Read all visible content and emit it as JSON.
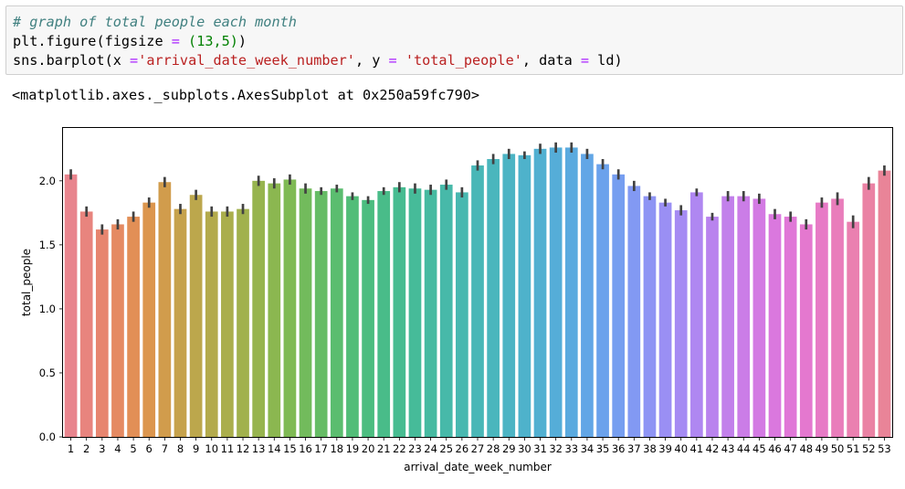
{
  "cell": {
    "comment": "# graph of total people each month",
    "line2": {
      "fn": "plt.figure",
      "open": "(",
      "arg": "figsize",
      "eq": " = ",
      "tuple": "(13,5)",
      "close": ")"
    },
    "line3": {
      "fn": "sns.barplot",
      "open": "(",
      "x_kw": "x ",
      "eq1": "=",
      "x_val": "'arrival_date_week_number'",
      "sep1": ", ",
      "y_kw": "y ",
      "eq2": "=",
      "y_val": " 'total_people'",
      "sep2": ", ",
      "data_kw": "data ",
      "eq3": "=",
      "data_val": " ld",
      "close": ")"
    }
  },
  "output": "<matplotlib.axes._subplots.AxesSubplot at 0x250a59fc790>",
  "chart_data": {
    "type": "bar",
    "xlabel": "arrival_date_week_number",
    "ylabel": "total_people",
    "ylim": [
      0,
      2.42
    ],
    "yticks": [
      "0.0",
      "0.5",
      "1.0",
      "1.5",
      "2.0"
    ],
    "categories": [
      "1",
      "2",
      "3",
      "4",
      "5",
      "6",
      "7",
      "8",
      "9",
      "10",
      "11",
      "12",
      "13",
      "14",
      "15",
      "16",
      "17",
      "18",
      "19",
      "20",
      "21",
      "22",
      "23",
      "24",
      "25",
      "26",
      "27",
      "28",
      "29",
      "30",
      "31",
      "32",
      "33",
      "34",
      "35",
      "36",
      "37",
      "38",
      "39",
      "40",
      "41",
      "42",
      "43",
      "44",
      "45",
      "46",
      "47",
      "48",
      "49",
      "50",
      "51",
      "52",
      "53"
    ],
    "values": [
      2.05,
      1.76,
      1.62,
      1.66,
      1.72,
      1.83,
      1.99,
      1.78,
      1.89,
      1.76,
      1.76,
      1.78,
      2.0,
      1.98,
      2.01,
      1.94,
      1.92,
      1.94,
      1.88,
      1.85,
      1.92,
      1.95,
      1.94,
      1.93,
      1.97,
      1.91,
      2.12,
      2.17,
      2.21,
      2.2,
      2.25,
      2.26,
      2.26,
      2.21,
      2.13,
      2.05,
      1.96,
      1.88,
      1.83,
      1.77,
      1.91,
      1.72,
      1.88,
      1.88,
      1.86,
      1.74,
      1.72,
      1.66,
      1.83,
      1.86,
      1.68,
      1.98,
      2.08
    ],
    "errors": [
      0.04,
      0.04,
      0.04,
      0.04,
      0.04,
      0.04,
      0.04,
      0.04,
      0.04,
      0.04,
      0.04,
      0.04,
      0.04,
      0.04,
      0.04,
      0.04,
      0.03,
      0.03,
      0.03,
      0.03,
      0.03,
      0.04,
      0.04,
      0.04,
      0.04,
      0.04,
      0.04,
      0.04,
      0.04,
      0.03,
      0.04,
      0.04,
      0.04,
      0.04,
      0.04,
      0.04,
      0.04,
      0.03,
      0.03,
      0.04,
      0.03,
      0.03,
      0.04,
      0.04,
      0.04,
      0.04,
      0.04,
      0.04,
      0.04,
      0.05,
      0.05,
      0.05,
      0.04
    ],
    "colors": [
      "#e8848d",
      "#e8847e",
      "#e7856f",
      "#e58a62",
      "#e28f56",
      "#dc964e",
      "#d19c4c",
      "#c6a24c",
      "#bca74c",
      "#b3aa4c",
      "#aaae4c",
      "#a1b14d",
      "#97b44f",
      "#8bb750",
      "#7fba54",
      "#72bb5c",
      "#66bc65",
      "#5bbd6f",
      "#52bd78",
      "#4cbd80",
      "#49bc89",
      "#47bc91",
      "#46bb99",
      "#46baa1",
      "#47b9a9",
      "#48b8b0",
      "#49b7b7",
      "#4ab6bd",
      "#4cb4c4",
      "#4eb2cb",
      "#51b0d1",
      "#55add8",
      "#5aaadf",
      "#62a6e6",
      "#6ba2ec",
      "#769ef0",
      "#8299f3",
      "#8e94f4",
      "#9a8ff4",
      "#a58bf3",
      "#af87f1",
      "#b983ee",
      "#c280eb",
      "#cb7de7",
      "#d37ae3",
      "#da78de",
      "#e077d7",
      "#e478cf",
      "#e77ac6",
      "#e97dbb",
      "#ea80b0",
      "#ea82a4",
      "#e98498"
    ]
  }
}
